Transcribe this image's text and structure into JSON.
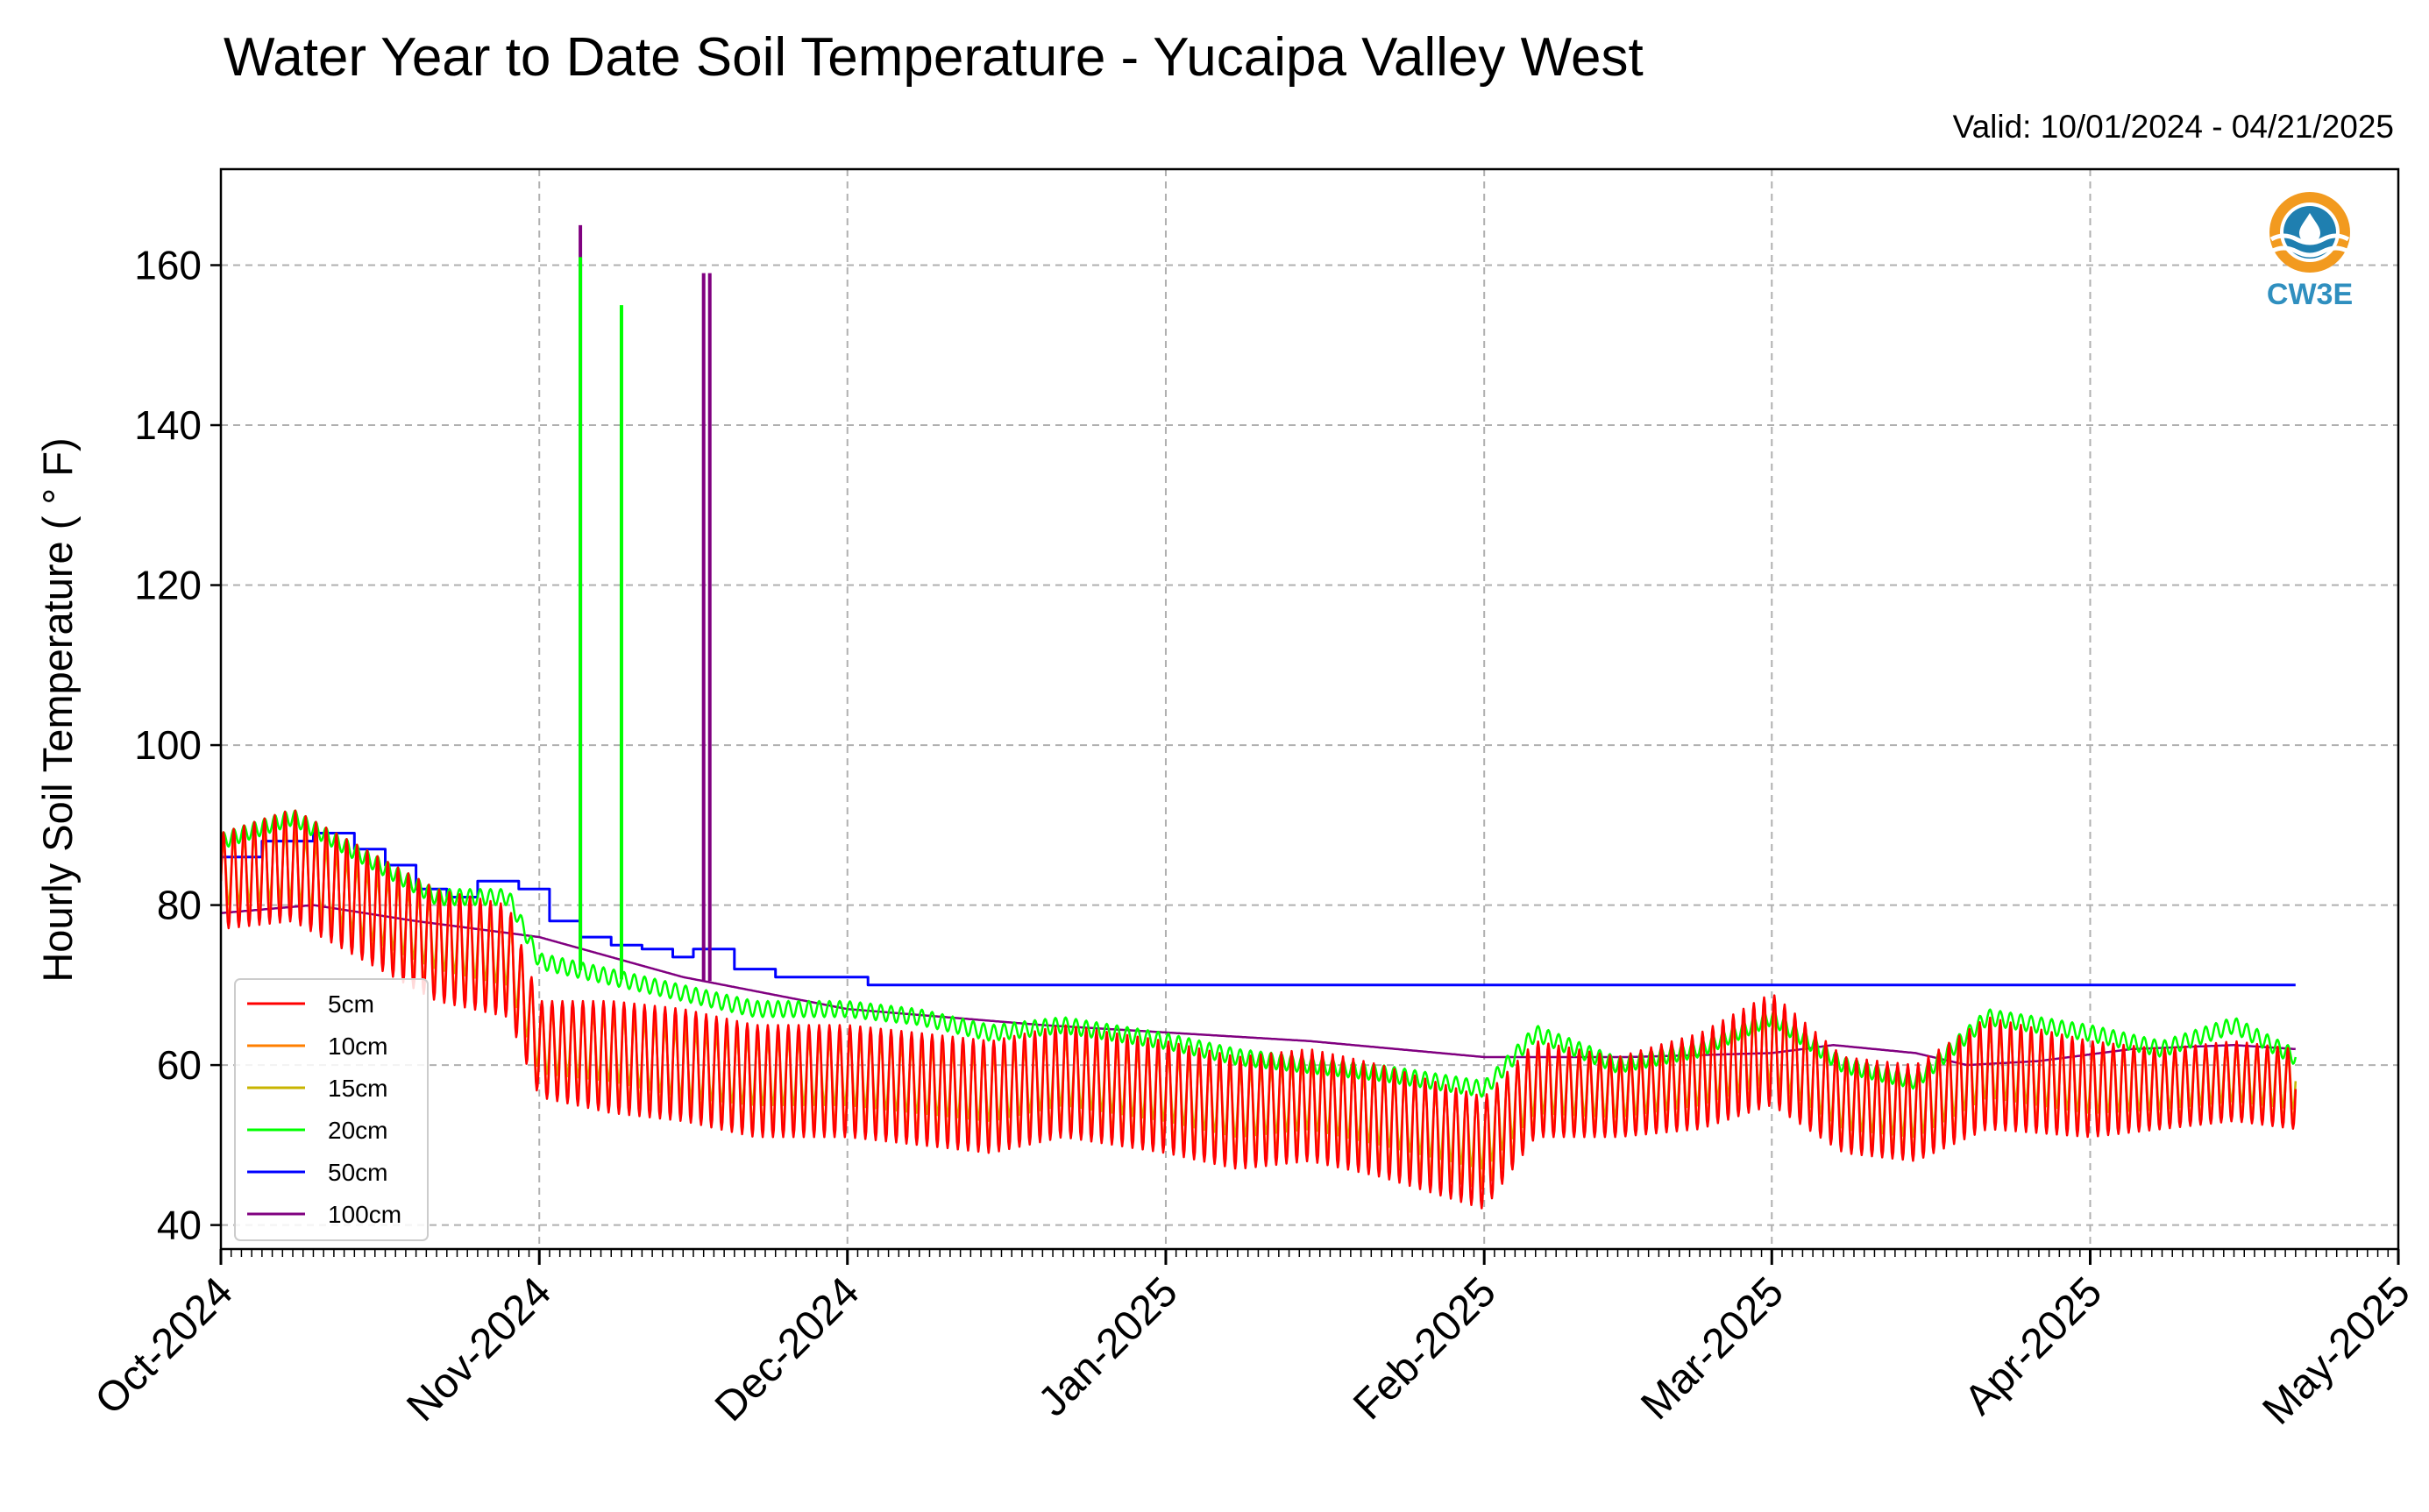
{
  "chart_data": {
    "type": "line",
    "title": "Water Year to Date Soil Temperature - Yucaipa Valley West",
    "subtitle": "Valid: 10/01/2024 - 04/21/2025",
    "ylabel": "Hourly Soil Temperature ( ° F)",
    "xlabel": "",
    "ylim": [
      37,
      172
    ],
    "yticks": [
      40,
      60,
      80,
      100,
      120,
      140,
      160
    ],
    "xlim": [
      "2024-10-01",
      "2025-05-01"
    ],
    "xticks": [
      {
        "date": "2024-10-01",
        "label": "Oct-2024"
      },
      {
        "date": "2024-11-01",
        "label": "Nov-2024"
      },
      {
        "date": "2024-12-01",
        "label": "Dec-2024"
      },
      {
        "date": "2025-01-01",
        "label": "Jan-2025"
      },
      {
        "date": "2025-02-01",
        "label": "Feb-2025"
      },
      {
        "date": "2025-03-01",
        "label": "Mar-2025"
      },
      {
        "date": "2025-04-01",
        "label": "Apr-2025"
      },
      {
        "date": "2025-05-01",
        "label": "May-2025"
      }
    ],
    "grid": true,
    "legend_position": "lower-left",
    "logo_text": "CW3E",
    "series": [
      {
        "name": "5cm",
        "color": "#ff0000",
        "x": [
          "2024-10-01",
          "2024-10-08",
          "2024-10-15",
          "2024-10-22",
          "2024-10-29",
          "2024-11-01",
          "2024-11-08",
          "2024-11-15",
          "2024-11-22",
          "2024-12-01",
          "2024-12-08",
          "2024-12-15",
          "2024-12-22",
          "2025-01-01",
          "2025-01-08",
          "2025-01-15",
          "2025-01-22",
          "2025-02-01",
          "2025-02-06",
          "2025-02-14",
          "2025-02-22",
          "2025-03-01",
          "2025-03-08",
          "2025-03-15",
          "2025-03-22",
          "2025-04-01",
          "2025-04-08",
          "2025-04-15",
          "2025-04-21"
        ],
        "y": [
          83,
          85,
          80,
          75,
          73,
          62,
          61,
          60,
          58,
          58,
          57,
          56,
          58,
          56,
          54,
          55,
          53,
          49,
          57,
          56,
          58,
          62,
          55,
          54,
          59,
          57,
          57,
          58,
          57
        ],
        "amplitude": [
          6,
          7,
          7,
          7,
          7,
          6,
          7,
          7,
          7,
          7,
          7,
          7,
          7,
          7,
          7,
          7,
          7,
          7,
          6,
          5,
          6,
          7,
          6,
          6,
          7,
          6,
          5,
          5,
          5
        ]
      },
      {
        "name": "10cm",
        "color": "#ff7f00",
        "x": [
          "2024-10-01",
          "2024-10-08",
          "2024-10-15",
          "2024-10-22",
          "2024-10-29",
          "2024-11-01",
          "2024-11-08",
          "2024-11-15",
          "2024-11-22",
          "2024-12-01",
          "2024-12-08",
          "2024-12-15",
          "2024-12-22",
          "2025-01-01",
          "2025-01-08",
          "2025-01-15",
          "2025-01-22",
          "2025-02-01",
          "2025-02-06",
          "2025-02-14",
          "2025-02-22",
          "2025-03-01",
          "2025-03-08",
          "2025-03-15",
          "2025-03-22",
          "2025-04-01",
          "2025-04-08",
          "2025-04-15",
          "2025-04-21"
        ],
        "y": [
          83,
          85,
          80,
          75,
          73,
          62,
          61,
          60,
          58,
          58,
          57,
          56,
          58,
          56,
          54,
          55,
          53,
          50,
          57,
          56,
          58,
          62,
          55,
          54,
          59,
          57,
          57,
          58,
          57
        ],
        "amplitude": [
          5,
          5.5,
          5.5,
          5.5,
          5.5,
          5,
          5.5,
          5.5,
          5.5,
          5.5,
          5.5,
          5.5,
          5.5,
          5.5,
          5.5,
          5.5,
          5.5,
          5.5,
          5,
          4,
          5,
          5.5,
          5,
          5,
          5.5,
          5,
          4,
          4,
          4
        ]
      },
      {
        "name": "15cm",
        "color": "#c8b400",
        "x": [
          "2024-10-01",
          "2024-10-08",
          "2024-10-15",
          "2024-10-22",
          "2024-10-29",
          "2024-11-01",
          "2024-11-08",
          "2024-11-15",
          "2024-11-22",
          "2024-12-01",
          "2024-12-08",
          "2024-12-15",
          "2024-12-22",
          "2025-01-01",
          "2025-01-08",
          "2025-01-15",
          "2025-01-22",
          "2025-02-01",
          "2025-02-06",
          "2025-02-14",
          "2025-02-22",
          "2025-03-01",
          "2025-03-08",
          "2025-03-15",
          "2025-03-22",
          "2025-04-01",
          "2025-04-08",
          "2025-04-15",
          "2025-04-21"
        ],
        "y": [
          84,
          85,
          80,
          76,
          74,
          63,
          62,
          60,
          59,
          59,
          58,
          57,
          59,
          57,
          55,
          56,
          54,
          51,
          58,
          57,
          59,
          62,
          56,
          55,
          60,
          58,
          58,
          59,
          58
        ],
        "amplitude": [
          4,
          4,
          4,
          4,
          4,
          4,
          4,
          4,
          4,
          4,
          4,
          4,
          4,
          4,
          4,
          4,
          4,
          4,
          4,
          3.5,
          4,
          4,
          4,
          4,
          4,
          4,
          3.5,
          3.5,
          3.5
        ]
      },
      {
        "name": "20cm",
        "color": "#00ff00",
        "x": [
          "2024-10-01",
          "2024-10-08",
          "2024-10-15",
          "2024-10-22",
          "2024-10-29",
          "2024-11-01",
          "2024-11-08",
          "2024-11-15",
          "2024-11-22",
          "2024-12-01",
          "2024-12-08",
          "2024-12-15",
          "2024-12-22",
          "2025-01-01",
          "2025-01-08",
          "2025-01-15",
          "2025-01-22",
          "2025-02-01",
          "2025-02-06",
          "2025-02-14",
          "2025-02-22",
          "2025-03-01",
          "2025-03-08",
          "2025-03-15",
          "2025-03-22",
          "2025-04-01",
          "2025-04-08",
          "2025-04-15",
          "2025-04-21"
        ],
        "y": [
          88,
          91,
          86,
          81,
          81,
          73,
          71,
          69,
          67,
          67,
          66,
          64,
          65,
          63,
          61,
          60,
          59,
          57,
          64,
          60,
          62,
          66,
          60,
          58,
          66,
          64,
          62,
          65,
          61
        ],
        "amplitude": [
          1,
          1,
          1,
          1,
          1,
          1,
          1,
          1,
          1,
          1,
          1,
          1,
          1,
          1,
          1,
          1,
          1,
          1,
          1,
          1,
          1,
          1,
          1,
          1,
          1,
          1,
          1,
          1,
          1
        ]
      },
      {
        "name": "50cm",
        "color": "#0000ff",
        "x": [
          "2024-10-01",
          "2024-10-05",
          "2024-10-10",
          "2024-10-14",
          "2024-10-17",
          "2024-10-20",
          "2024-10-23",
          "2024-10-26",
          "2024-10-30",
          "2024-11-02",
          "2024-11-05",
          "2024-11-08",
          "2024-11-11",
          "2024-11-14",
          "2024-11-16",
          "2024-11-20",
          "2024-11-24",
          "2024-11-28",
          "2024-12-03",
          "2025-04-21"
        ],
        "y": [
          86,
          88,
          89,
          87,
          85,
          82,
          81,
          83,
          82,
          78,
          76,
          75,
          74.5,
          73.5,
          74.5,
          72,
          71,
          71,
          70,
          70
        ]
      },
      {
        "name": "100cm",
        "color": "#800080",
        "x": [
          "2024-10-01",
          "2024-10-10",
          "2024-10-20",
          "2024-11-01",
          "2024-11-15",
          "2024-12-01",
          "2024-12-20",
          "2025-01-15",
          "2025-02-01",
          "2025-02-15",
          "2025-03-01",
          "2025-03-07",
          "2025-03-15",
          "2025-03-20",
          "2025-03-27",
          "2025-04-05",
          "2025-04-15",
          "2025-04-21"
        ],
        "y": [
          79,
          80,
          78,
          76,
          71,
          67,
          65,
          63,
          61,
          61,
          61.5,
          62.5,
          61.5,
          60,
          60.5,
          62,
          62.5,
          62
        ]
      }
    ],
    "spikes": [
      {
        "series": "100cm",
        "date": "2024-11-05",
        "values": [
          165
        ]
      },
      {
        "series": "20cm",
        "date": "2024-11-05",
        "values": [
          161
        ]
      },
      {
        "series": "20cm",
        "date": "2024-11-09",
        "values": [
          155
        ]
      },
      {
        "series": "100cm",
        "date": "2024-11-17",
        "values": [
          159,
          159
        ]
      }
    ]
  }
}
